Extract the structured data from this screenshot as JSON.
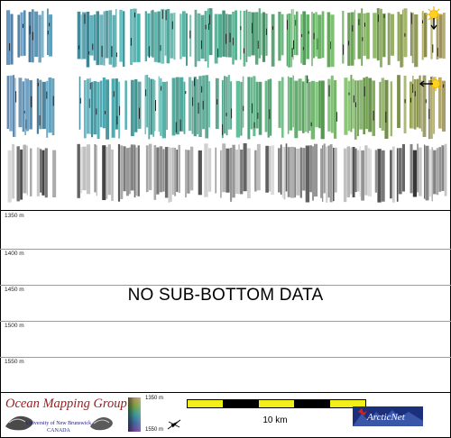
{
  "depth_axis": {
    "labels": [
      "1350 m",
      "1400 m",
      "1450 m",
      "1500 m",
      "1550 m"
    ]
  },
  "subbottom_panel": {
    "message": "NO SUB-BOTTOM DATA"
  },
  "imagery_panels": {
    "rows": [
      "bathymetry-lit-from-top",
      "bathymetry-lit-from-left",
      "backscatter-grayscale"
    ],
    "colors": {
      "deep": "#5a4fa6",
      "mid": "#3fa3a8",
      "shallow_green": "#5fae4c",
      "shallow_olive": "#a8924a",
      "backscatter_dark": "#3a3a3a",
      "backscatter_light": "#bdbdbd"
    },
    "illumination_icons": [
      "sun-arrow-down-icon",
      "sun-arrow-left-icon"
    ]
  },
  "footer": {
    "org_title": "Ocean Mapping Group",
    "org_university": "University of New Brunswick",
    "org_country": "CANADA",
    "colorbar": {
      "top_label": "1350 m",
      "bottom_label": "1550 m"
    },
    "north_arrow_icon": "north-arrow-icon",
    "scalebar_label": "10 km",
    "partner_logo_text": "ArcticNet"
  }
}
